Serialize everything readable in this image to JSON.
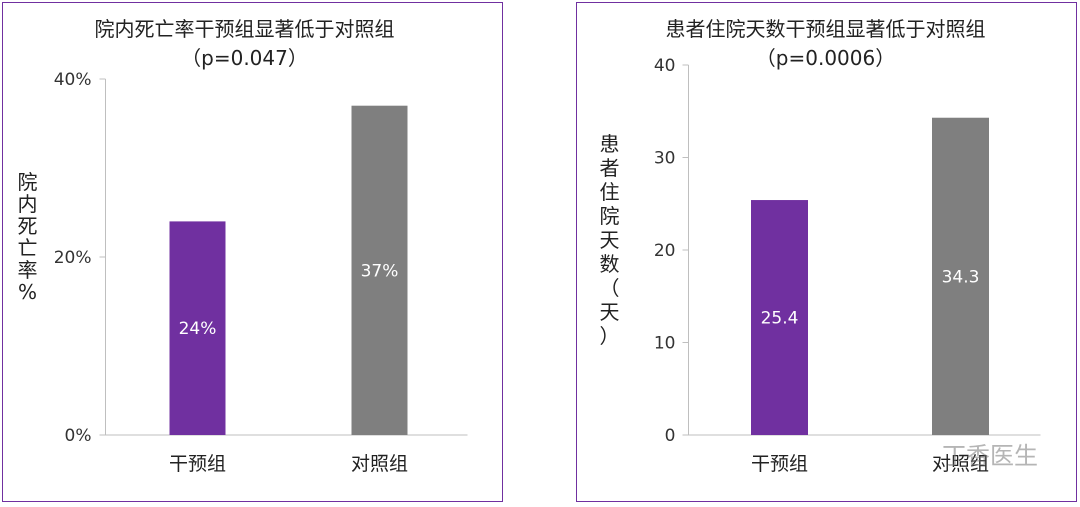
{
  "colors": {
    "intervention": "#7030a0",
    "control": "#7f7f7f",
    "border": "#7030a0"
  },
  "watermark": "丁香医生",
  "chart_data": [
    {
      "type": "bar",
      "title": "院内死亡率干预组显著低于对照组",
      "subtitle": "（p=0.047）",
      "ylabel": "院内死亡率%",
      "xlabel": "",
      "categories": [
        "干预组",
        "对照组"
      ],
      "values": [
        24,
        37
      ],
      "value_labels": [
        "24%",
        "37%"
      ],
      "ylim": [
        0,
        40
      ],
      "yticks": [
        0,
        20,
        40
      ],
      "ytick_labels": [
        "0%",
        "20%",
        "40%"
      ],
      "grid": false
    },
    {
      "type": "bar",
      "title": "患者住院天数干预组显著低于对照组",
      "subtitle": "（p=0.0006）",
      "ylabel": "患者住院天数（天）",
      "xlabel": "",
      "categories": [
        "干预组",
        "对照组"
      ],
      "values": [
        25.4,
        34.3
      ],
      "value_labels": [
        "25.4",
        "34.3"
      ],
      "ylim": [
        0,
        40
      ],
      "yticks": [
        0,
        10,
        20,
        30,
        40
      ],
      "ytick_labels": [
        "0",
        "10",
        "20",
        "30",
        "40"
      ],
      "grid": false
    }
  ]
}
